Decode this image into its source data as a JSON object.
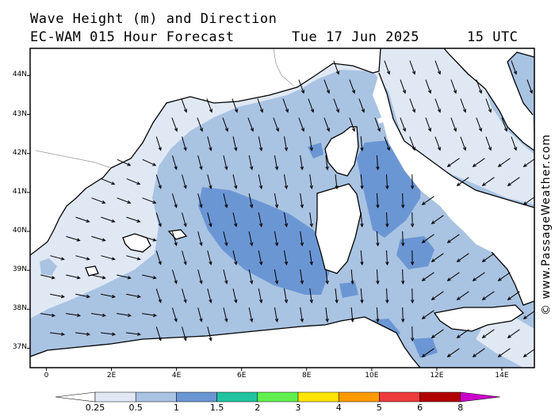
{
  "title": {
    "line1": "Wave Height (m) and Direction",
    "line2": "EC-WAM 015 Hour Forecast",
    "date": "Tue 17 Jun 2025",
    "time": "15 UTC"
  },
  "credit": "© www.PassageWeather.com",
  "map_data": {
    "type": "wave-height-direction",
    "lat_range": [
      36.5,
      44.7
    ],
    "lon_range": [
      -0.5,
      15.0
    ],
    "lat_ticks": [
      {
        "value": 37,
        "label": "37N"
      },
      {
        "value": 38,
        "label": "38N"
      },
      {
        "value": 39,
        "label": "39N"
      },
      {
        "value": 40,
        "label": "40N"
      },
      {
        "value": 41,
        "label": "41N"
      },
      {
        "value": 42,
        "label": "42N"
      },
      {
        "value": 43,
        "label": "43N"
      },
      {
        "value": 44,
        "label": "44N"
      }
    ],
    "lon_ticks": [
      {
        "value": 0,
        "label": "0"
      },
      {
        "value": 2,
        "label": "2E"
      },
      {
        "value": 4,
        "label": "4E"
      },
      {
        "value": 6,
        "label": "6E"
      },
      {
        "value": 8,
        "label": "8E"
      },
      {
        "value": 10,
        "label": "10E"
      },
      {
        "value": 12,
        "label": "12E"
      },
      {
        "value": 14,
        "label": "14E"
      }
    ],
    "colors": {
      "land": "#ffffff",
      "lt_025": "#ffffff",
      "b025_05": "#e0e8f4",
      "b05_1": "#a9c3e2",
      "b1_15": "#6b96d4",
      "coast": "#000000",
      "border": "#999999",
      "arrow": "#000000"
    }
  },
  "legend": {
    "labels": [
      "0.25",
      "0.5",
      "1",
      "1.5",
      "2",
      "3",
      "4",
      "5",
      "6",
      "8"
    ],
    "colors": [
      "#e0e8f4",
      "#a9c3e2",
      "#6b96d4",
      "#21c49e",
      "#61ef50",
      "#ffe400",
      "#ff9a00",
      "#ef3b3b",
      "#b00000",
      "#cc00cc"
    ]
  }
}
